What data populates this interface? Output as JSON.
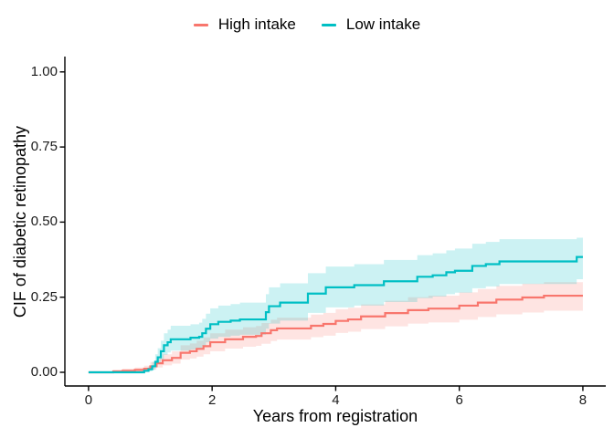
{
  "chart_data": {
    "type": "line",
    "subtype": "step-cumulative-incidence-with-confidence-bands",
    "title": "",
    "xlabel": "Years from registration",
    "ylabel": "CIF of diabetic retinopathy",
    "xlim": [
      0,
      8
    ],
    "ylim": [
      0,
      1
    ],
    "grid": "off",
    "legend_position": "top-center",
    "x_ticks": [
      {
        "value": 0,
        "label": "0"
      },
      {
        "value": 2,
        "label": "2"
      },
      {
        "value": 4,
        "label": "4"
      },
      {
        "value": 6,
        "label": "6"
      },
      {
        "value": 8,
        "label": "8"
      }
    ],
    "y_ticks": [
      {
        "value": 0.0,
        "label": "0.00"
      },
      {
        "value": 0.25,
        "label": "0.25"
      },
      {
        "value": 0.5,
        "label": "0.50"
      },
      {
        "value": 0.75,
        "label": "0.75"
      },
      {
        "value": 1.0,
        "label": "1.00"
      }
    ],
    "axis_color": "#000000",
    "series": [
      {
        "name": "High intake",
        "color": "#F8766D",
        "band_fill": "rgba(248,118,109,0.20)",
        "points_format": [
          "year",
          "cif",
          "ci_lower",
          "ci_upper"
        ],
        "points": [
          [
            0.0,
            0.0,
            0.0,
            0.0
          ],
          [
            0.4,
            0.003,
            0.0,
            0.008
          ],
          [
            0.55,
            0.005,
            0.001,
            0.012
          ],
          [
            0.75,
            0.008,
            0.002,
            0.016
          ],
          [
            0.9,
            0.012,
            0.004,
            0.022
          ],
          [
            1.0,
            0.02,
            0.009,
            0.034
          ],
          [
            1.1,
            0.03,
            0.016,
            0.047
          ],
          [
            1.2,
            0.04,
            0.023,
            0.06
          ],
          [
            1.35,
            0.048,
            0.029,
            0.07
          ],
          [
            1.49,
            0.065,
            0.042,
            0.09
          ],
          [
            1.64,
            0.07,
            0.046,
            0.096
          ],
          [
            1.75,
            0.078,
            0.052,
            0.105
          ],
          [
            1.86,
            0.087,
            0.06,
            0.116
          ],
          [
            1.97,
            0.1,
            0.07,
            0.13
          ],
          [
            2.21,
            0.11,
            0.079,
            0.142
          ],
          [
            2.5,
            0.118,
            0.085,
            0.15
          ],
          [
            2.71,
            0.121,
            0.088,
            0.154
          ],
          [
            2.8,
            0.13,
            0.095,
            0.164
          ],
          [
            2.95,
            0.14,
            0.104,
            0.175
          ],
          [
            3.05,
            0.146,
            0.109,
            0.182
          ],
          [
            3.6,
            0.155,
            0.117,
            0.192
          ],
          [
            3.8,
            0.161,
            0.122,
            0.198
          ],
          [
            4.0,
            0.171,
            0.131,
            0.21
          ],
          [
            4.2,
            0.176,
            0.135,
            0.215
          ],
          [
            4.41,
            0.186,
            0.144,
            0.226
          ],
          [
            4.8,
            0.197,
            0.153,
            0.238
          ],
          [
            5.17,
            0.207,
            0.162,
            0.25
          ],
          [
            5.5,
            0.212,
            0.166,
            0.255
          ],
          [
            6.0,
            0.222,
            0.175,
            0.266
          ],
          [
            6.3,
            0.232,
            0.184,
            0.277
          ],
          [
            6.6,
            0.242,
            0.193,
            0.288
          ],
          [
            7.02,
            0.249,
            0.199,
            0.295
          ],
          [
            7.37,
            0.255,
            0.205,
            0.3
          ],
          [
            8.0,
            0.255,
            0.205,
            0.3
          ]
        ]
      },
      {
        "name": "Low intake",
        "color": "#00BFC4",
        "band_fill": "rgba(0,191,196,0.20)",
        "points_format": [
          "year",
          "cif",
          "ci_lower",
          "ci_upper"
        ],
        "points": [
          [
            0.0,
            0.0,
            0.0,
            0.0
          ],
          [
            0.9,
            0.005,
            0.001,
            0.012
          ],
          [
            0.97,
            0.01,
            0.003,
            0.02
          ],
          [
            1.03,
            0.02,
            0.008,
            0.035
          ],
          [
            1.08,
            0.035,
            0.018,
            0.06
          ],
          [
            1.12,
            0.05,
            0.028,
            0.08
          ],
          [
            1.17,
            0.07,
            0.042,
            0.105
          ],
          [
            1.22,
            0.09,
            0.058,
            0.13
          ],
          [
            1.28,
            0.1,
            0.066,
            0.142
          ],
          [
            1.33,
            0.11,
            0.072,
            0.155
          ],
          [
            1.65,
            0.115,
            0.076,
            0.16
          ],
          [
            1.79,
            0.118,
            0.078,
            0.165
          ],
          [
            1.84,
            0.13,
            0.088,
            0.178
          ],
          [
            1.9,
            0.145,
            0.1,
            0.195
          ],
          [
            1.97,
            0.16,
            0.112,
            0.213
          ],
          [
            2.1,
            0.168,
            0.118,
            0.222
          ],
          [
            2.3,
            0.172,
            0.122,
            0.227
          ],
          [
            2.45,
            0.176,
            0.125,
            0.232
          ],
          [
            2.87,
            0.2,
            0.145,
            0.26
          ],
          [
            2.92,
            0.22,
            0.162,
            0.283
          ],
          [
            3.1,
            0.232,
            0.172,
            0.296
          ],
          [
            3.55,
            0.262,
            0.198,
            0.33
          ],
          [
            3.84,
            0.283,
            0.216,
            0.352
          ],
          [
            4.3,
            0.29,
            0.222,
            0.36
          ],
          [
            4.78,
            0.303,
            0.234,
            0.374
          ],
          [
            5.32,
            0.318,
            0.247,
            0.39
          ],
          [
            5.57,
            0.323,
            0.252,
            0.396
          ],
          [
            5.79,
            0.333,
            0.26,
            0.406
          ],
          [
            5.93,
            0.338,
            0.265,
            0.412
          ],
          [
            6.21,
            0.354,
            0.28,
            0.428
          ],
          [
            6.43,
            0.36,
            0.286,
            0.434
          ],
          [
            6.65,
            0.369,
            0.294,
            0.443
          ],
          [
            7.9,
            0.384,
            0.31,
            0.448
          ],
          [
            8.0,
            0.384,
            0.31,
            0.448
          ]
        ]
      }
    ]
  },
  "legend": {
    "items": [
      {
        "label": "High intake",
        "color": "#F8766D"
      },
      {
        "label": "Low intake",
        "color": "#00BFC4"
      }
    ]
  }
}
